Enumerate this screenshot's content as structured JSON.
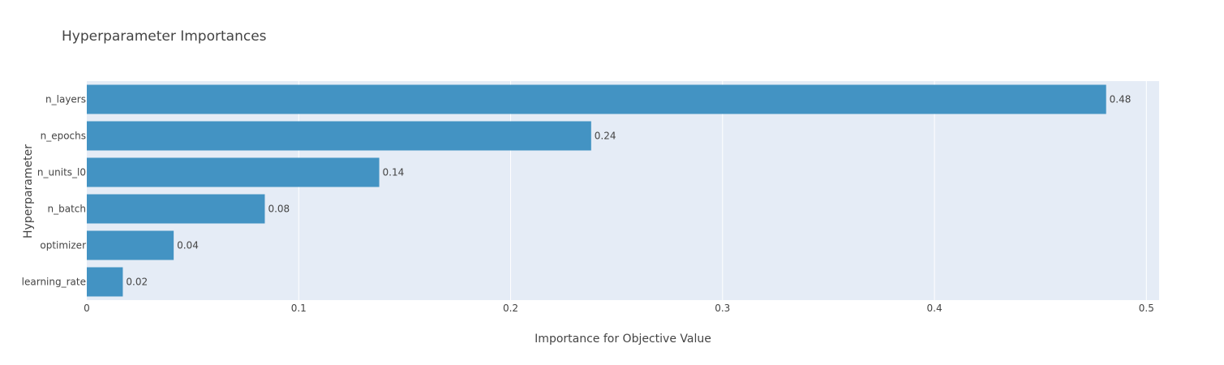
{
  "chart_data": {
    "type": "bar",
    "orientation": "horizontal",
    "title": "Hyperparameter Importances",
    "xlabel": "Importance for Objective Value",
    "ylabel": "Hyperparameter",
    "categories": [
      "learning_rate",
      "optimizer",
      "n_batch",
      "n_units_l0",
      "n_epochs",
      "n_layers"
    ],
    "values": [
      0.017,
      0.041,
      0.084,
      0.138,
      0.238,
      0.481
    ],
    "value_labels": [
      "0.02",
      "0.04",
      "0.08",
      "0.14",
      "0.24",
      "0.48"
    ],
    "xlim": [
      0,
      0.506
    ],
    "xticks": [
      0,
      0.1,
      0.2,
      0.3,
      0.4,
      0.5
    ],
    "xtick_labels": [
      "0",
      "0.1",
      "0.2",
      "0.3",
      "0.4",
      "0.5"
    ],
    "grid": true,
    "colors": {
      "bar": "#4393c3",
      "plot_bg": "#e5ecf6",
      "grid": "#ffffff",
      "text": "#444444"
    }
  }
}
